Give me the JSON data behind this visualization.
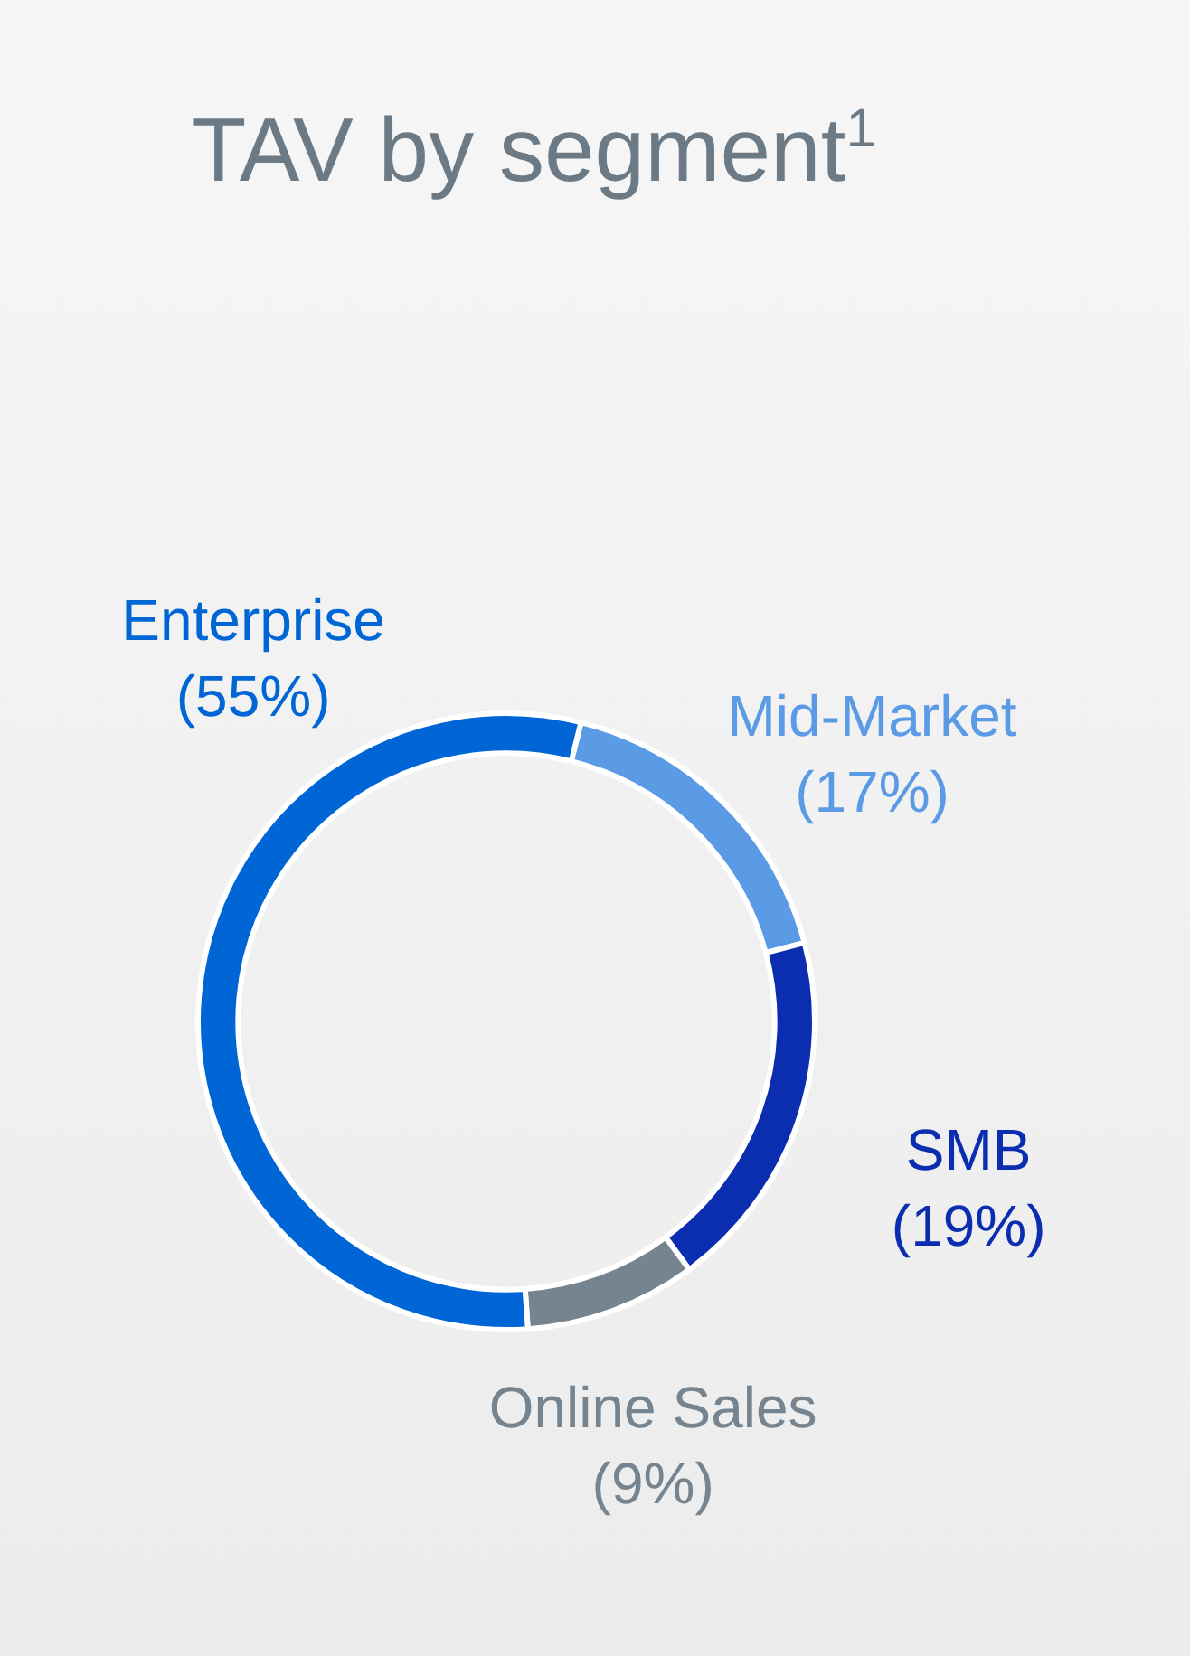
{
  "chart_data": {
    "type": "donut",
    "title": "TAV by segment$^{1}$",
    "categories": [
      "Mid-Market",
      "SMB",
      "Online Sales",
      "Enterprise"
    ],
    "values": [
      17,
      19,
      9,
      55
    ],
    "colors": [
      "#5b9be6",
      "#0b2db0",
      "#75848f",
      "#0066d6"
    ],
    "value_labels": [
      "(17%)",
      "(19%)",
      "(9%)",
      "(55%)"
    ],
    "legend": false
  }
}
